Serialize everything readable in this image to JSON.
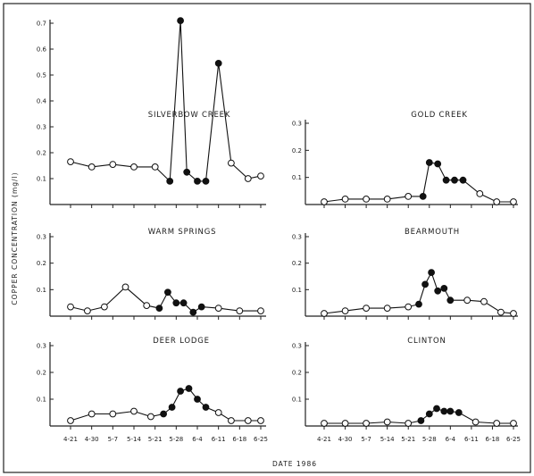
{
  "figure": {
    "ylabel": "COPPER CONCENTRATION (mg/l)",
    "xlabel": "DATE 1986"
  },
  "chart_data": [
    {
      "type": "line",
      "title": "SILVERBOW CREEK",
      "ylim": [
        0,
        0.7
      ],
      "yticks": [
        "0.1",
        "0.2",
        "0.3",
        "0.4",
        "0.5",
        "0.6",
        "0.7"
      ],
      "yticks_values": [
        0.1,
        0.2,
        0.3,
        0.4,
        0.5,
        0.6,
        0.7
      ],
      "x": [
        0,
        1,
        2,
        3,
        4,
        4.7,
        5.2,
        5.5,
        6,
        6.4,
        7,
        7.6,
        8.4,
        9
      ],
      "y": [
        0.165,
        0.145,
        0.155,
        0.145,
        0.145,
        0.09,
        0.71,
        0.125,
        0.09,
        0.09,
        0.545,
        0.16,
        0.1,
        0.11
      ],
      "filled": [
        false,
        false,
        false,
        false,
        false,
        true,
        true,
        true,
        true,
        true,
        true,
        false,
        false,
        false
      ]
    },
    {
      "type": "line",
      "title": "GOLD CREEK",
      "ylim": [
        0,
        0.3
      ],
      "yticks": [
        "0.1",
        "0.2",
        "0.3"
      ],
      "yticks_values": [
        0.1,
        0.2,
        0.3
      ],
      "x": [
        0,
        1,
        2,
        3,
        4,
        4.7,
        5.0,
        5.4,
        5.8,
        6.2,
        6.6,
        7.4,
        8.2,
        9
      ],
      "y": [
        0.01,
        0.02,
        0.02,
        0.02,
        0.03,
        0.03,
        0.155,
        0.15,
        0.09,
        0.09,
        0.09,
        0.04,
        0.01,
        0.01
      ],
      "filled": [
        false,
        false,
        false,
        false,
        false,
        true,
        true,
        true,
        true,
        true,
        true,
        false,
        false,
        false
      ]
    },
    {
      "type": "line",
      "title": "WARM SPRINGS",
      "ylim": [
        0,
        0.3
      ],
      "yticks": [
        "0.1",
        "0.2",
        "0.3"
      ],
      "yticks_values": [
        0.1,
        0.2,
        0.3
      ],
      "x": [
        0,
        0.8,
        1.6,
        2.6,
        3.6,
        4.2,
        4.6,
        5.0,
        5.35,
        5.8,
        6.2,
        7.0,
        8.0,
        9
      ],
      "y": [
        0.035,
        0.02,
        0.035,
        0.11,
        0.04,
        0.03,
        0.09,
        0.05,
        0.05,
        0.015,
        0.035,
        0.03,
        0.02,
        0.02
      ],
      "filled": [
        false,
        false,
        false,
        false,
        false,
        true,
        true,
        true,
        true,
        true,
        true,
        false,
        false,
        false
      ]
    },
    {
      "type": "line",
      "title": "BEARMOUTH",
      "ylim": [
        0,
        0.3
      ],
      "yticks": [
        "0.1",
        "0.2",
        "0.3"
      ],
      "yticks_values": [
        0.1,
        0.2,
        0.3
      ],
      "x": [
        0,
        1,
        2,
        3,
        4,
        4.5,
        4.8,
        5.1,
        5.4,
        5.7,
        6.0,
        6.8,
        7.6,
        8.4,
        9
      ],
      "y": [
        0.01,
        0.02,
        0.03,
        0.03,
        0.035,
        0.045,
        0.12,
        0.165,
        0.095,
        0.105,
        0.06,
        0.06,
        0.055,
        0.015,
        0.01
      ],
      "filled": [
        false,
        false,
        false,
        false,
        false,
        true,
        true,
        true,
        true,
        true,
        true,
        false,
        false,
        false,
        false
      ]
    },
    {
      "type": "line",
      "title": "DEER LODGE",
      "ylim": [
        0,
        0.3
      ],
      "yticks": [
        "0.1",
        "0.2",
        "0.3"
      ],
      "yticks_values": [
        0.1,
        0.2,
        0.3
      ],
      "x": [
        0,
        1,
        2,
        3,
        3.8,
        4.4,
        4.8,
        5.2,
        5.6,
        6.0,
        6.4,
        7.0,
        7.6,
        8.4,
        9
      ],
      "y": [
        0.02,
        0.045,
        0.045,
        0.055,
        0.035,
        0.045,
        0.07,
        0.13,
        0.14,
        0.1,
        0.07,
        0.05,
        0.02,
        0.02,
        0.02
      ],
      "filled": [
        false,
        false,
        false,
        false,
        false,
        true,
        true,
        true,
        true,
        true,
        true,
        false,
        false,
        false,
        false
      ]
    },
    {
      "type": "line",
      "title": "CLINTON",
      "ylim": [
        0,
        0.3
      ],
      "yticks": [
        "0.1",
        "0.2",
        "0.3"
      ],
      "yticks_values": [
        0.1,
        0.2,
        0.3
      ],
      "x": [
        0,
        1,
        2,
        3,
        4,
        4.6,
        5.0,
        5.35,
        5.7,
        6.0,
        6.4,
        7.2,
        8.2,
        9
      ],
      "y": [
        0.01,
        0.01,
        0.01,
        0.015,
        0.01,
        0.02,
        0.045,
        0.065,
        0.055,
        0.055,
        0.05,
        0.015,
        0.01,
        0.01
      ],
      "filled": [
        false,
        false,
        false,
        false,
        false,
        true,
        true,
        true,
        true,
        true,
        true,
        false,
        false,
        false
      ]
    }
  ],
  "x_tick_labels": [
    "4-21",
    "4-30",
    "5-7",
    "5-14",
    "5-21",
    "5-28",
    "6-4",
    "6-11",
    "6-18",
    "6-25"
  ]
}
